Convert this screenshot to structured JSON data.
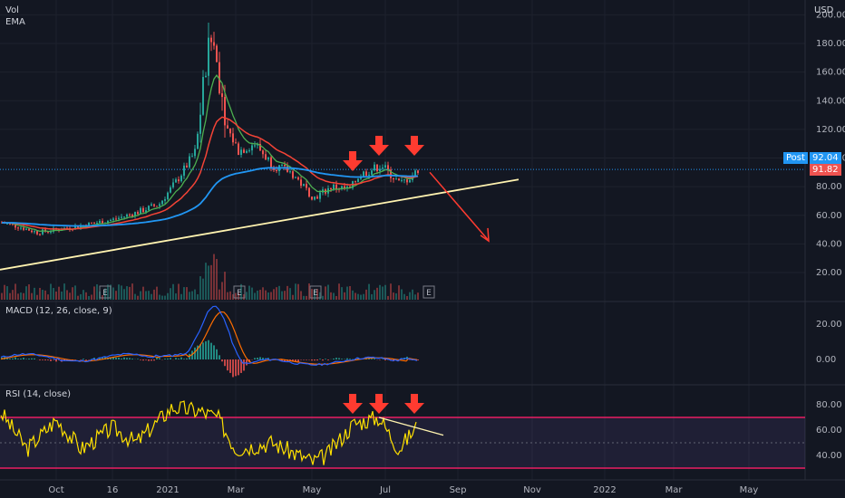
{
  "legend": {
    "vol": "Vol",
    "ema": "EMA"
  },
  "currency": "USD",
  "colors": {
    "bg": "#131722",
    "grid": "#1e222d",
    "up": "#26a69a",
    "down": "#ef5350",
    "ema_fast": "#4caf50",
    "ema_slow": "#f44336",
    "ema_long": "#2196f3",
    "trend": "#fff3b0",
    "arrow": "#ff3b30",
    "rsi": "#ffe000",
    "rsi_band": "#e91e63",
    "macd_line": "#2962ff",
    "signal_line": "#ff6d00",
    "post": "#2196f3",
    "last": "#ef5350"
  },
  "chart_data": [
    {
      "type": "line",
      "title": "",
      "price_axis_ticks": [
        "200.00",
        "180.00",
        "160.00",
        "140.00",
        "120.00",
        "100.00",
        "80.00",
        "60.00",
        "40.00",
        "20.00"
      ],
      "ylim": [
        10,
        205
      ],
      "time_axis_labels": [
        "Oct",
        "16",
        "2021",
        "Mar",
        "May",
        "Jul",
        "Sep",
        "Nov",
        "2022",
        "Mar",
        "May"
      ],
      "series": [
        {
          "name": "Price",
          "x": [
            "2020-09",
            "2020-10",
            "2020-11",
            "2020-12",
            "2021-01",
            "2021-02",
            "2021-03",
            "2021-04",
            "2021-05",
            "2021-06",
            "2021-07",
            "2021-08"
          ],
          "y": [
            55,
            50,
            57,
            68,
            100,
            185,
            110,
            90,
            72,
            95,
            90,
            92
          ]
        }
      ],
      "markers": {
        "post": {
          "label": "Post",
          "value": "92.04"
        },
        "last": {
          "value": "91.82"
        }
      },
      "earnings_labels": [
        "E",
        "E",
        "E",
        "E"
      ]
    },
    {
      "type": "line",
      "title": "MACD (12, 26, close, 9)",
      "price_axis_ticks": [
        "20.00",
        "0.00"
      ],
      "series": [
        {
          "name": "MACD",
          "x": [
            "2020-09",
            "2020-12",
            "2021-02",
            "2021-03",
            "2021-05",
            "2021-08"
          ],
          "y": [
            0,
            3,
            30,
            -3,
            -3,
            2
          ]
        },
        {
          "name": "Signal",
          "x": [
            "2020-09",
            "2020-12",
            "2021-02",
            "2021-03",
            "2021-05",
            "2021-08"
          ],
          "y": [
            0,
            2,
            25,
            0,
            -2,
            1
          ]
        }
      ]
    },
    {
      "type": "line",
      "title": "RSI (14, close)",
      "price_axis_ticks": [
        "80.00",
        "60.00",
        "40.00"
      ],
      "ylim": [
        28,
        92
      ],
      "bands": [
        70,
        30
      ],
      "series": [
        {
          "name": "RSI",
          "x": [
            "2020-09",
            "2020-11",
            "2021-01",
            "2021-02",
            "2021-04",
            "2021-05",
            "2021-06",
            "2021-07",
            "2021-08"
          ],
          "y": [
            75,
            45,
            78,
            85,
            45,
            35,
            65,
            70,
            63
          ]
        }
      ]
    }
  ]
}
